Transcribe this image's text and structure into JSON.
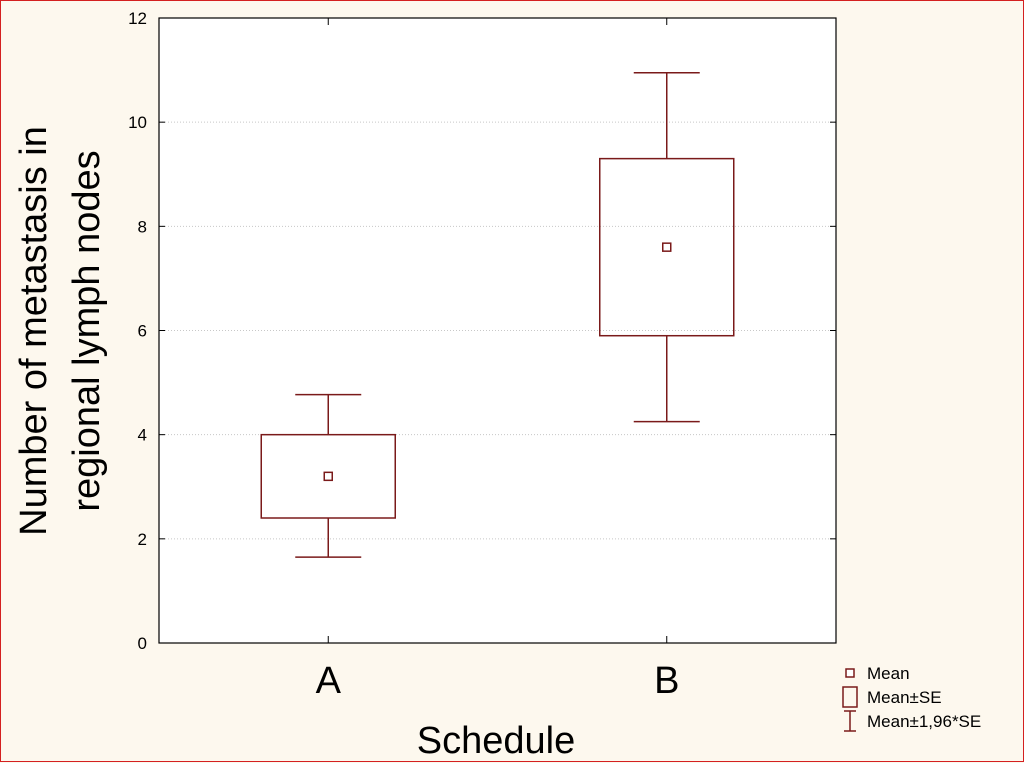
{
  "chart_data": {
    "type": "box",
    "xlabel": "Schedule",
    "ylabel_lines": [
      "Number of metastasis in",
      "regional lymph nodes"
    ],
    "ylim": [
      0,
      12
    ],
    "yticks": [
      0,
      2,
      4,
      6,
      8,
      10,
      12
    ],
    "grid": true,
    "legend_position": "bottom-right",
    "color": "#7a1a1a",
    "categories": [
      "A",
      "B"
    ],
    "series": [
      {
        "category": "A",
        "mean": 3.2,
        "se_low": 2.4,
        "se_high": 4.0,
        "ci_low": 1.65,
        "ci_high": 4.77
      },
      {
        "category": "B",
        "mean": 7.6,
        "se_low": 5.9,
        "se_high": 9.3,
        "ci_low": 4.25,
        "ci_high": 10.95
      }
    ],
    "legend": [
      {
        "symbol": "mean-marker",
        "label": "Mean"
      },
      {
        "symbol": "box",
        "label": "Mean±SE"
      },
      {
        "symbol": "whisker",
        "label": "Mean±1,96*SE"
      }
    ]
  }
}
